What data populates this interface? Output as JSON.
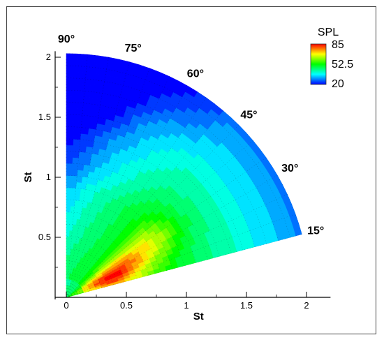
{
  "chart_data": {
    "type": "heatmap",
    "subtype": "polar-sector contour map",
    "xlabel": "St",
    "ylabel": "St",
    "xlim": [
      0,
      2.2
    ],
    "ylim": [
      0,
      2.05
    ],
    "x_ticks": [
      "0",
      "0.5",
      "1",
      "1.5",
      "2"
    ],
    "y_ticks": [
      "0.5",
      "1",
      "1.5",
      "2"
    ],
    "radial_max": 2.03,
    "angle_range_deg": [
      15,
      90
    ],
    "angle_labels": [
      "90°",
      "75°",
      "60°",
      "45°",
      "30°",
      "15°"
    ],
    "colorbar": {
      "title": "SPL",
      "ticks": [
        "85",
        "52.5",
        "20"
      ],
      "min": 20,
      "max": 85,
      "colormap": [
        "#0000ff",
        "#00ffff",
        "#00ff00",
        "#ffff00",
        "#ff0000"
      ]
    },
    "field_description": "SPL over radial St (0-2) and polar angle (15-90 deg); max ~85 near St 0.3-0.6 at low angles, min ~20 at high St near 90 deg",
    "hotspots": [
      {
        "St_r": 0.35,
        "angle_deg": 25,
        "SPL": 84
      },
      {
        "St_r": 0.75,
        "angle_deg": 32,
        "SPL": 76
      },
      {
        "St_r": 1.8,
        "angle_deg": 84,
        "SPL": 22
      }
    ],
    "grid": true
  }
}
